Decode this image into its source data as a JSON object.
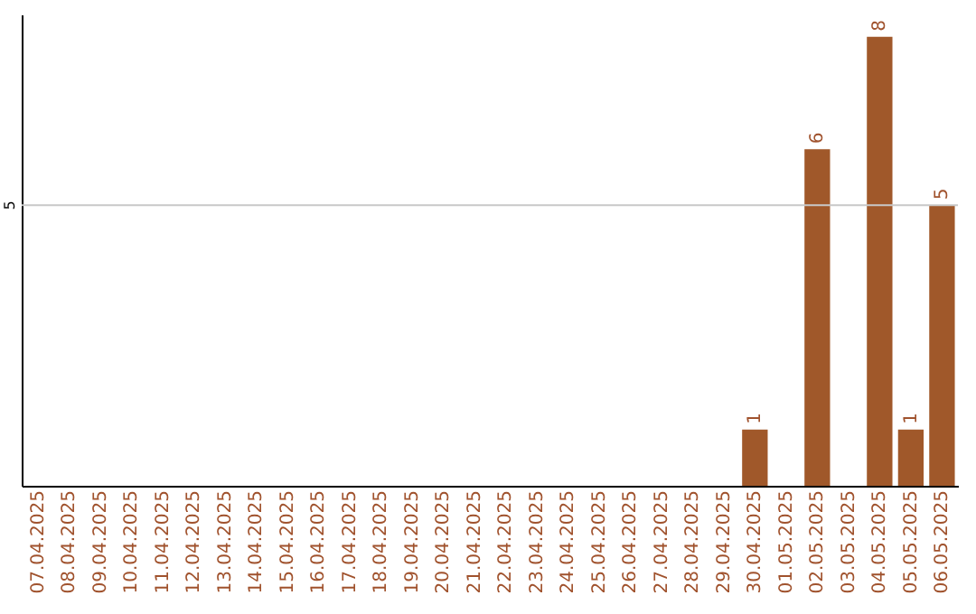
{
  "chart_data": {
    "type": "bar",
    "categories": [
      "07.04.2025",
      "08.04.2025",
      "09.04.2025",
      "10.04.2025",
      "11.04.2025",
      "12.04.2025",
      "13.04.2025",
      "14.04.2025",
      "15.04.2025",
      "16.04.2025",
      "17.04.2025",
      "18.04.2025",
      "19.04.2025",
      "20.04.2025",
      "21.04.2025",
      "22.04.2025",
      "23.04.2025",
      "24.04.2025",
      "25.04.2025",
      "26.04.2025",
      "27.04.2025",
      "28.04.2025",
      "29.04.2025",
      "30.04.2025",
      "01.05.2025",
      "02.05.2025",
      "03.05.2025",
      "04.05.2025",
      "05.05.2025",
      "06.05.2025"
    ],
    "values": [
      null,
      null,
      null,
      null,
      null,
      null,
      null,
      null,
      null,
      null,
      null,
      null,
      null,
      null,
      null,
      null,
      null,
      null,
      null,
      null,
      null,
      null,
      null,
      1,
      null,
      6,
      null,
      8,
      1,
      5
    ],
    "data_labels": true,
    "color": "#a0582a",
    "ylim": [
      0,
      8.4
    ],
    "ref_lines": [
      {
        "axis": "y",
        "value": 5,
        "label": "5",
        "color": "#c8c8c8"
      }
    ]
  }
}
